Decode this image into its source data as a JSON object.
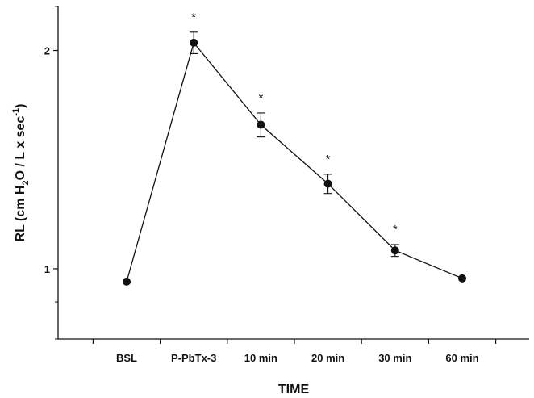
{
  "chart_data": {
    "type": "line",
    "xlabel": "TIME",
    "ylabel": {
      "prefix": "RL (cm H",
      "sub": "2",
      "middle": "O / L x sec",
      "sup": "-1",
      "suffix": ")"
    },
    "yscale": "log",
    "ylim": [
      0.8,
      2.3
    ],
    "yticks": [
      {
        "value": 1,
        "label": "1"
      },
      {
        "value": 2,
        "label": "2"
      }
    ],
    "categories": [
      "BSL",
      "P-PbTx-3",
      "10 min",
      "20 min",
      "30 min",
      "60 min"
    ],
    "values": [
      0.96,
      2.05,
      1.58,
      1.31,
      1.06,
      0.97
    ],
    "errors": [
      null,
      0.07,
      0.06,
      0.04,
      0.02,
      null
    ],
    "significance": [
      "",
      "*",
      "*",
      "*",
      "*",
      ""
    ],
    "grid": false
  }
}
